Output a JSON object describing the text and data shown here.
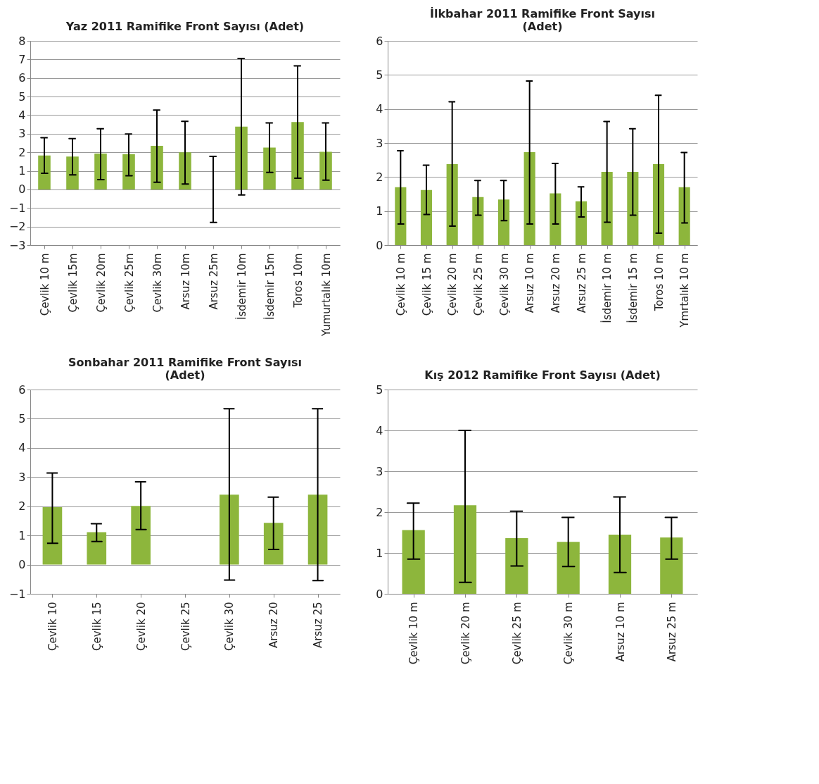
{
  "chart_data": [
    {
      "type": "bar",
      "title": "Yaz  2011 Ramifike Front Sayısı (Adet)",
      "categories": [
        "Çevlik 10 m",
        "Çevlik 15m",
        "Çevlik 20m",
        "Çevlik 25m",
        "Çevlik 30m",
        "Arsuz 10m",
        "Arsuz 25m",
        "İsdemir 10m",
        "İsdemir 15m",
        "Toros 10m",
        "Yumurtalık 10m"
      ],
      "color": "#8db63c",
      "values": [
        1.83,
        1.77,
        1.93,
        1.9,
        2.35,
        2.0,
        0,
        3.38,
        2.25,
        3.63,
        2.03
      ],
      "errors": [
        [
          0.87,
          2.78
        ],
        [
          0.78,
          2.74
        ],
        [
          0.53,
          3.27
        ],
        [
          0.74,
          2.98
        ],
        [
          0.39,
          4.27
        ],
        [
          0.29,
          3.67
        ],
        [
          -1.78,
          1.78
        ],
        [
          -0.3,
          7.05
        ],
        [
          0.92,
          3.58
        ],
        [
          0.6,
          6.65
        ],
        [
          0.5,
          3.58
        ]
      ],
      "ylim": [
        -3,
        8
      ],
      "yticks": [
        -3,
        -2,
        -1,
        0,
        1,
        2,
        3,
        4,
        5,
        6,
        7,
        8
      ],
      "grid": "y"
    },
    {
      "type": "bar",
      "title": "İlkbahar 2011 Ramifike Front Sayısı\n(Adet)",
      "categories": [
        "Çevlik 10 m",
        "Çevlik 15 m",
        "Çevlik 20 m",
        "Çevlik 25 m",
        "Çevlik 30 m",
        "Arsuz 10 m",
        "Arsuz 20 m",
        "Arsuz 25 m",
        "İsdemir 10 m",
        "İsdemir 15 m",
        "Toros 10 m",
        "Ymrtalık 10 m"
      ],
      "color": "#8db63c",
      "values": [
        1.7,
        1.62,
        2.38,
        1.41,
        1.34,
        2.73,
        1.52,
        1.29,
        2.15,
        2.15,
        2.38,
        1.7
      ],
      "errors": [
        [
          0.62,
          2.77
        ],
        [
          0.9,
          2.35
        ],
        [
          0.56,
          4.21
        ],
        [
          0.88,
          1.9
        ],
        [
          0.72,
          1.9
        ],
        [
          0.62,
          4.82
        ],
        [
          0.62,
          2.4
        ],
        [
          0.83,
          1.71
        ],
        [
          0.67,
          3.63
        ],
        [
          0.88,
          3.42
        ],
        [
          0.35,
          4.4
        ],
        [
          0.65,
          2.72
        ]
      ],
      "ylim": [
        0,
        6
      ],
      "yticks": [
        0,
        1,
        2,
        3,
        4,
        5,
        6
      ],
      "grid": "y"
    },
    {
      "type": "bar",
      "title": "Sonbahar 2011 Ramifike Front Sayısı\n(Adet)",
      "categories": [
        "Çevlik 10",
        "Çevlik 15",
        "Çevlik 20",
        "Çevlik 25",
        "Çevlik 30",
        "Arsuz 20",
        "Arsuz 25"
      ],
      "color": "#8db63c",
      "values": [
        1.97,
        1.11,
        2.01,
        null,
        2.4,
        1.43,
        2.4
      ],
      "errors": [
        [
          0.73,
          3.14
        ],
        [
          0.79,
          1.4
        ],
        [
          1.2,
          2.84
        ],
        null,
        [
          -0.53,
          5.34
        ],
        [
          0.52,
          2.31
        ],
        [
          -0.55,
          5.34
        ]
      ],
      "ylim": [
        -1,
        6
      ],
      "yticks": [
        -1,
        0,
        1,
        2,
        3,
        4,
        5,
        6
      ],
      "grid": "y"
    },
    {
      "type": "bar",
      "title": "Kış 2012 Ramifike Front Sayısı (Adet)",
      "categories": [
        "Çevlik 10 m",
        "Çevlik 20 m",
        "Çevlik 25 m",
        "Çevlik 30 m",
        "Arsuz 10 m",
        "Arsuz 25 m"
      ],
      "color": "#8db63c",
      "values": [
        1.56,
        2.17,
        1.36,
        1.27,
        1.45,
        1.38
      ],
      "errors": [
        [
          0.85,
          2.22
        ],
        [
          0.28,
          4.0
        ],
        [
          0.68,
          2.02
        ],
        [
          0.67,
          1.87
        ],
        [
          0.52,
          2.37
        ],
        [
          0.85,
          1.87
        ]
      ],
      "ylim": [
        0,
        5
      ],
      "yticks": [
        0,
        1,
        2,
        3,
        4,
        5
      ],
      "grid": "y"
    }
  ]
}
